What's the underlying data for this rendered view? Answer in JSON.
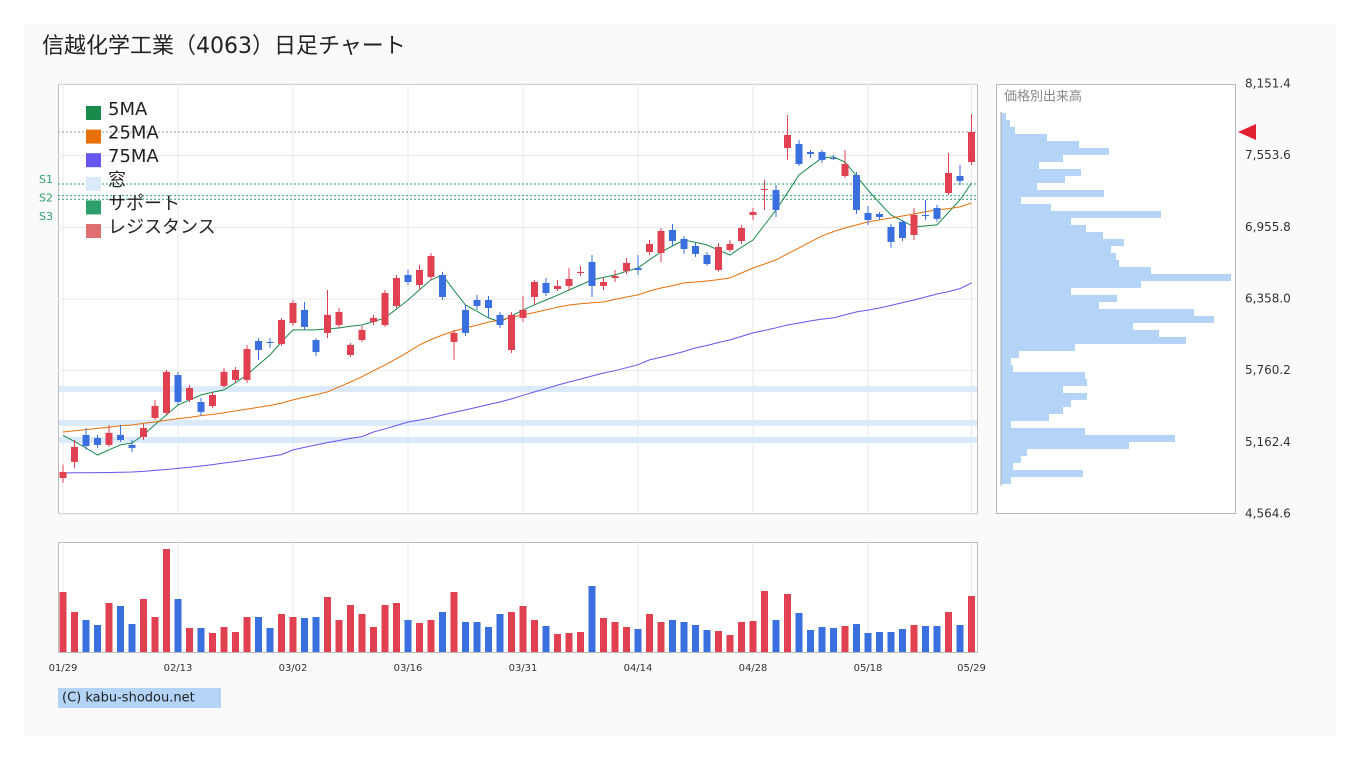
{
  "footer": "(C) kabu-shodou.net",
  "chart_data": [
    {
      "type": "candlestick",
      "title": "信越化学工業（4063）日足チャート",
      "up_color": "#e0404f",
      "down_color": "#3a6fe0",
      "categories": [
        "01/29",
        null,
        null,
        null,
        null,
        null,
        null,
        null,
        null,
        null,
        "02/13",
        null,
        null,
        null,
        null,
        null,
        null,
        null,
        null,
        null,
        "03/02",
        null,
        null,
        null,
        null,
        null,
        null,
        null,
        null,
        null,
        "03/16",
        null,
        null,
        null,
        null,
        null,
        null,
        null,
        null,
        null,
        "03/31",
        null,
        null,
        null,
        null,
        null,
        null,
        null,
        null,
        null,
        "04/14",
        null,
        null,
        null,
        null,
        null,
        null,
        null,
        null,
        null,
        "04/28",
        null,
        null,
        null,
        null,
        null,
        null,
        null,
        null,
        null,
        "05/18",
        null,
        null,
        null,
        null,
        null,
        null,
        null,
        null,
        "05/29"
      ],
      "open": [
        4865,
        4999,
        5224,
        5199,
        5141,
        5224,
        5141,
        5207,
        5366,
        5408,
        5724,
        5516,
        5499,
        5466,
        5633,
        5683,
        5683,
        6008,
        6000,
        5983,
        6158,
        6267,
        6016,
        6075,
        6141,
        5891,
        6016,
        6167,
        6141,
        6300,
        6558,
        6475,
        6542,
        6558,
        6000,
        6267,
        6350,
        6350,
        6225,
        5933,
        6200,
        6375,
        6492,
        6442,
        6467,
        6575,
        6667,
        6467,
        6533,
        6592,
        6617,
        6750,
        6742,
        6934,
        6859,
        6800,
        6725,
        6600,
        6767,
        6842,
        7059,
        7267,
        7267,
        7618,
        7651,
        7584,
        7584,
        7534,
        7384,
        7392,
        7076,
        7067,
        6959,
        7001,
        6892,
        7059,
        7117,
        7242,
        7384,
        7501
      ],
      "high": [
        4975,
        5182,
        5282,
        5224,
        5307,
        5307,
        5182,
        5316,
        5516,
        5766,
        5750,
        5641,
        5533,
        5583,
        5783,
        5791,
        5975,
        6033,
        6033,
        6200,
        6350,
        6333,
        6033,
        6433,
        6283,
        5991,
        6133,
        6225,
        6433,
        6558,
        6600,
        6642,
        6742,
        6584,
        6100,
        6308,
        6392,
        6383,
        6250,
        6250,
        6383,
        6517,
        6533,
        6517,
        6617,
        6634,
        6725,
        6533,
        6600,
        6700,
        6725,
        6850,
        6950,
        6984,
        6884,
        6825,
        6750,
        6825,
        6850,
        6975,
        7117,
        7351,
        7309,
        7893,
        7684,
        7601,
        7601,
        7559,
        7601,
        7418,
        7134,
        7084,
        6984,
        7017,
        7117,
        7184,
        7142,
        7576,
        7476,
        7901
      ],
      "low": [
        4825,
        4949,
        5099,
        5116,
        5124,
        5166,
        5082,
        5182,
        5349,
        5391,
        5474,
        5499,
        5383,
        5449,
        5616,
        5658,
        5658,
        5850,
        5950,
        5966,
        6133,
        6100,
        5883,
        6033,
        6116,
        5875,
        6000,
        6141,
        6125,
        6283,
        6475,
        6433,
        6517,
        6350,
        5850,
        6050,
        6267,
        6200,
        6116,
        5908,
        6167,
        6308,
        6383,
        6425,
        6433,
        6550,
        6375,
        6433,
        6500,
        6567,
        6558,
        6725,
        6667,
        6800,
        6734,
        6709,
        6634,
        6584,
        6750,
        6817,
        7017,
        7101,
        7042,
        7518,
        7468,
        7534,
        7493,
        7518,
        7368,
        7067,
        6975,
        7017,
        6784,
        6842,
        6850,
        7017,
        7001,
        7226,
        7309,
        7476
      ],
      "close": [
        4915,
        5124,
        5132,
        5141,
        5241,
        5182,
        5116,
        5282,
        5466,
        5750,
        5499,
        5616,
        5416,
        5558,
        5750,
        5766,
        5941,
        5933,
        5991,
        6183,
        6325,
        6125,
        5916,
        6225,
        6250,
        5975,
        6100,
        6200,
        6408,
        6533,
        6500,
        6600,
        6717,
        6375,
        6075,
        6075,
        6300,
        6283,
        6141,
        6225,
        6267,
        6500,
        6408,
        6467,
        6525,
        6584,
        6467,
        6500,
        6550,
        6659,
        6600,
        6817,
        6925,
        6842,
        6775,
        6734,
        6650,
        6792,
        6817,
        6950,
        7084,
        7275,
        7101,
        7726,
        7484,
        7568,
        7518,
        7530,
        7484,
        7101,
        7017,
        7042,
        6834,
        6867,
        7059,
        7051,
        7026,
        7409,
        7343,
        7751
      ],
      "series": [
        {
          "name": "5MA",
          "color": "#1a8a4a",
          "values": [
            5220,
            5170,
            5115,
            5057,
            5100,
            5141,
            5157,
            5224,
            5310,
            5391,
            5474,
            5515,
            5558,
            5580,
            5600,
            5660,
            5725,
            5810,
            5891,
            6000,
            6100,
            6100,
            6100,
            6110,
            6116,
            6130,
            6141,
            6170,
            6200,
            6275,
            6350,
            6435,
            6517,
            6558,
            6430,
            6308,
            6255,
            6200,
            6167,
            6215,
            6267,
            6310,
            6350,
            6390,
            6433,
            6475,
            6517,
            6538,
            6558,
            6590,
            6617,
            6685,
            6750,
            6800,
            6850,
            6830,
            6809,
            6765,
            6725,
            6790,
            6850,
            6975,
            7101,
            7245,
            7392,
            7465,
            7534,
            7543,
            7501,
            7385,
            7267,
            7160,
            7059,
            7010,
            6959,
            6968,
            6976,
            7080,
            7184,
            7326
          ]
        },
        {
          "name": "25MA",
          "color": "#e8700a",
          "values": [
            5249,
            5259,
            5269,
            5279,
            5288,
            5300,
            5307,
            5320,
            5333,
            5346,
            5360,
            5370,
            5385,
            5395,
            5410,
            5425,
            5440,
            5455,
            5470,
            5490,
            5516,
            5540,
            5560,
            5583,
            5625,
            5666,
            5710,
            5760,
            5808,
            5860,
            5915,
            5975,
            6020,
            6058,
            6090,
            6116,
            6140,
            6165,
            6183,
            6205,
            6225,
            6245,
            6267,
            6290,
            6308,
            6318,
            6326,
            6333,
            6355,
            6375,
            6392,
            6425,
            6450,
            6470,
            6492,
            6500,
            6508,
            6520,
            6534,
            6575,
            6617,
            6650,
            6684,
            6735,
            6784,
            6835,
            6884,
            6920,
            6951,
            6975,
            7001,
            7018,
            7034,
            7050,
            7068,
            7085,
            7101,
            7112,
            7126,
            7159
          ]
        },
        {
          "name": "75MA",
          "color": "#6655ee",
          "values": [
            4907,
            4908,
            4909,
            4910,
            4911,
            4913,
            4915,
            4920,
            4928,
            4936,
            4945,
            4955,
            4965,
            4977,
            4990,
            5002,
            5015,
            5030,
            5045,
            5060,
            5099,
            5120,
            5141,
            5160,
            5178,
            5195,
            5210,
            5249,
            5275,
            5303,
            5332,
            5349,
            5366,
            5390,
            5412,
            5433,
            5455,
            5478,
            5499,
            5525,
            5555,
            5583,
            5610,
            5640,
            5666,
            5690,
            5716,
            5741,
            5760,
            5785,
            5810,
            5850,
            5872,
            5895,
            5920,
            5950,
            5970,
            5995,
            6017,
            6046,
            6075,
            6095,
            6118,
            6141,
            6158,
            6175,
            6190,
            6200,
            6225,
            6250,
            6265,
            6283,
            6305,
            6328,
            6350,
            6375,
            6400,
            6420,
            6445,
            6492
          ]
        }
      ],
      "gaps": {
        "name": "窓",
        "color": "#dbeafb",
        "ranges": [
          [
            5582,
            5632
          ],
          [
            5300,
            5350
          ],
          [
            5157,
            5207
          ]
        ]
      },
      "support": {
        "name": "サポート",
        "color": "#2e9e6b",
        "levels": [
          {
            "label": "S1",
            "value": 7317
          },
          {
            "label": "S2",
            "value": 7220
          },
          {
            "label": "S3",
            "value": 7190
          }
        ]
      },
      "resistance": {
        "name": "レジスタンス",
        "color": "#e07070"
      },
      "ylim": [
        4564.6,
        8151.4
      ],
      "yticks": [
        {
          "value": 8151.4,
          "label": "8,151.4"
        },
        {
          "value": 7553.6,
          "label": "7,553.6"
        },
        {
          "value": 6955.8,
          "label": "6,955.8"
        },
        {
          "value": 6358.0,
          "label": "6,358.0"
        },
        {
          "value": 5760.2,
          "label": "5,760.2"
        },
        {
          "value": 5162.4,
          "label": "5,162.4"
        },
        {
          "value": 4564.6,
          "label": "4,564.6"
        }
      ],
      "grid": true,
      "legend": "upper left"
    },
    {
      "type": "bar",
      "ylim": [
        0,
        110
      ],
      "values": [
        60,
        40,
        32,
        27,
        49,
        46,
        28,
        53,
        35,
        103,
        53,
        24,
        24,
        19,
        25,
        20,
        35,
        35,
        24,
        38,
        35,
        34,
        35,
        55,
        32,
        47,
        38,
        25,
        47,
        49,
        32,
        29,
        32,
        40,
        60,
        30,
        30,
        25,
        38,
        40,
        46,
        32,
        26,
        18,
        19,
        20,
        66,
        34,
        30,
        25,
        23,
        38,
        30,
        32,
        30,
        27,
        22,
        21,
        17,
        30,
        31,
        61,
        32,
        58,
        39,
        22,
        25,
        24,
        26,
        28,
        19,
        20,
        20,
        23,
        27,
        26,
        26,
        40,
        27,
        56
      ]
    },
    {
      "type": "histogram",
      "title": "価格別出来高",
      "orientation": "horizontal",
      "color": "#b3d3f7",
      "xlim": [
        0,
        235
      ],
      "bins": [
        7910,
        7852,
        7793,
        7735,
        7676,
        7618,
        7560,
        7501,
        7443,
        7384,
        7326,
        7268,
        7209,
        7151,
        7092,
        7034,
        6976,
        6917,
        6859,
        6800,
        6742,
        6684,
        6625,
        6567,
        6508,
        6450,
        6392,
        6333,
        6275,
        6216,
        6158,
        6100,
        6041,
        5983,
        5924,
        5866,
        5808,
        5749,
        5691,
        5632,
        5574,
        5516,
        5457,
        5399,
        5340,
        5282,
        5224,
        5165,
        5107,
        5048,
        4990,
        4932,
        4873,
        4815
      ],
      "counts": [
        5,
        9,
        14,
        46,
        78,
        108,
        62,
        38,
        80,
        64,
        36,
        103,
        20,
        50,
        160,
        70,
        85,
        102,
        123,
        110,
        115,
        118,
        150,
        230,
        140,
        70,
        116,
        98,
        193,
        213,
        132,
        158,
        185,
        74,
        18,
        10,
        12,
        84,
        86,
        62,
        86,
        70,
        62,
        48,
        10,
        84,
        174,
        128,
        26,
        20,
        12,
        82,
        10
      ]
    }
  ]
}
